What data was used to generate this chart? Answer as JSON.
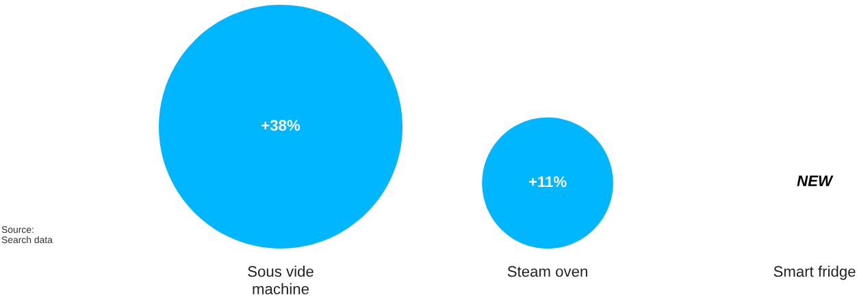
{
  "chart_data": {
    "type": "other",
    "categories": [
      "Sous vide machine",
      "Steam oven",
      "Smart fridge"
    ],
    "values": [
      38,
      11,
      null
    ],
    "value_labels": [
      "+38%",
      "+11%",
      "NEW"
    ],
    "color": "#00b6ff",
    "annotations": [
      "Source:\nSearch data"
    ]
  }
}
